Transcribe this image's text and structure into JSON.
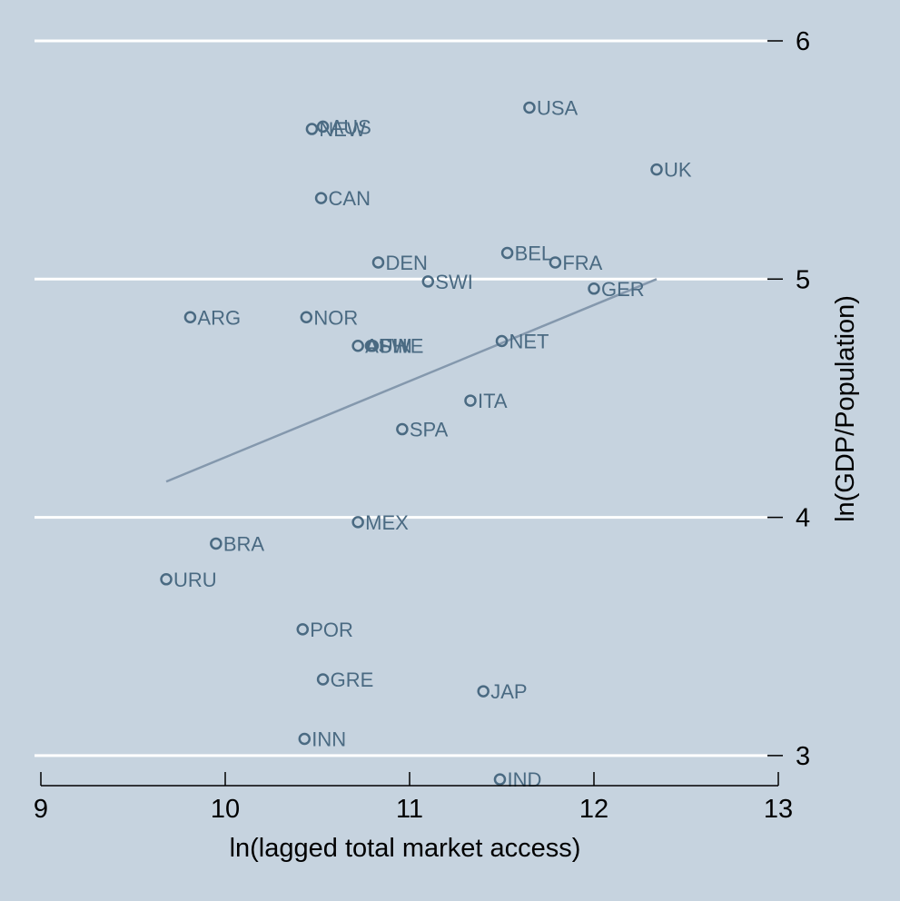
{
  "chart_data": {
    "type": "scatter",
    "title": "",
    "xlabel": "ln(lagged total market access)",
    "ylabel": "ln(GDP/Population)",
    "xlim": [
      9,
      13
    ],
    "ylim": [
      2.9,
      6
    ],
    "x_ticks": [
      {
        "value": 9,
        "label": "9"
      },
      {
        "value": 10,
        "label": "10"
      },
      {
        "value": 11,
        "label": "11"
      },
      {
        "value": 12,
        "label": "12"
      },
      {
        "value": 13,
        "label": "13"
      }
    ],
    "y_ticks": [
      {
        "value": 3,
        "label": "3"
      },
      {
        "value": 4,
        "label": "4"
      },
      {
        "value": 5,
        "label": "5"
      },
      {
        "value": 6,
        "label": "6"
      }
    ],
    "y_axis_side": "right",
    "grid": "horizontal",
    "points": [
      {
        "label": "AUS",
        "x": 10.53,
        "y": 5.64
      },
      {
        "label": "NEW",
        "x": 10.47,
        "y": 5.63
      },
      {
        "label": "USA",
        "x": 11.65,
        "y": 5.72
      },
      {
        "label": "UK",
        "x": 12.34,
        "y": 5.46
      },
      {
        "label": "CAN",
        "x": 10.52,
        "y": 5.34
      },
      {
        "label": "BEL",
        "x": 11.53,
        "y": 5.11
      },
      {
        "label": "FRA",
        "x": 11.79,
        "y": 5.07
      },
      {
        "label": "DEN",
        "x": 10.83,
        "y": 5.07
      },
      {
        "label": "SWI",
        "x": 11.1,
        "y": 4.99
      },
      {
        "label": "GER",
        "x": 12.0,
        "y": 4.96
      },
      {
        "label": "ARG",
        "x": 9.81,
        "y": 4.84
      },
      {
        "label": "NOR",
        "x": 10.44,
        "y": 4.84
      },
      {
        "label": "AUH",
        "x": 10.72,
        "y": 4.72
      },
      {
        "label": "SWE",
        "x": 10.79,
        "y": 4.72
      },
      {
        "label": "FIN",
        "x": 10.8,
        "y": 4.72
      },
      {
        "label": "NET",
        "x": 11.5,
        "y": 4.74
      },
      {
        "label": "ITA",
        "x": 11.33,
        "y": 4.49
      },
      {
        "label": "SPA",
        "x": 10.96,
        "y": 4.37
      },
      {
        "label": "MEX",
        "x": 10.72,
        "y": 3.98
      },
      {
        "label": "BRA",
        "x": 9.95,
        "y": 3.89
      },
      {
        "label": "URU",
        "x": 9.68,
        "y": 3.74
      },
      {
        "label": "POR",
        "x": 10.42,
        "y": 3.53
      },
      {
        "label": "GRE",
        "x": 10.53,
        "y": 3.32
      },
      {
        "label": "JAP",
        "x": 11.4,
        "y": 3.27
      },
      {
        "label": "INN",
        "x": 10.43,
        "y": 3.07
      },
      {
        "label": "IND",
        "x": 11.49,
        "y": 2.9
      }
    ],
    "fit_line": {
      "x": [
        9.68,
        12.34
      ],
      "y": [
        4.15,
        5.0
      ]
    },
    "colors": {
      "background": "#c6d3df",
      "marker": "#4a6a82",
      "fit_line": "#8498ad",
      "grid": "#ffffff"
    }
  }
}
